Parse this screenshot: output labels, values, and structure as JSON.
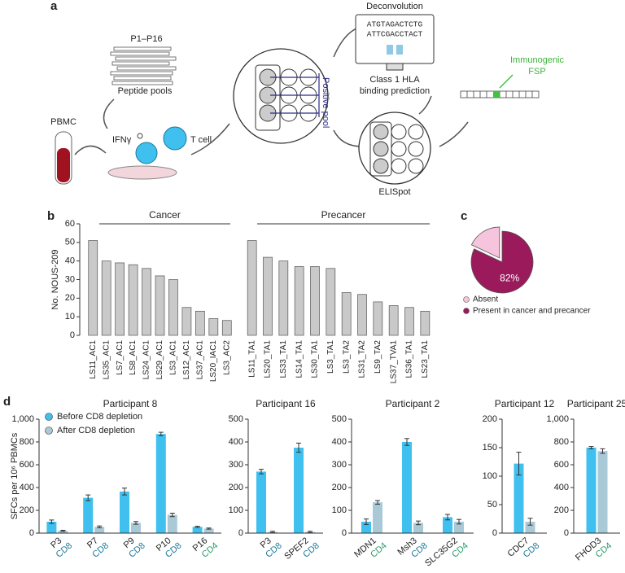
{
  "panel_labels": [
    "a",
    "b",
    "c",
    "d"
  ],
  "diagram": {
    "pools_title": "P1–P16",
    "pools_label": "Peptide pools",
    "pbmc": "PBMC",
    "ifng": "IFNγ",
    "tcell": "T cell",
    "positive_pool": "Positive pool",
    "deconvolution": "Deconvolution",
    "sequence": [
      "ATGTAGACTCTG",
      "ATTCGACCTACT"
    ],
    "prediction": [
      "Class 1 HLA",
      "binding prediction"
    ],
    "elispot": "ELISpot",
    "fsp": [
      "Immunogenic",
      "FSP"
    ]
  },
  "chart_data": [
    {
      "type": "bar",
      "y_label": "No. NOUS-209",
      "ylim": [
        0,
        60
      ],
      "yticks": [
        0,
        10,
        20,
        30,
        40,
        50,
        60
      ],
      "color": "#c9c9c9",
      "groups": [
        {
          "name": "Cancer",
          "categories": [
            "LS11_AC1",
            "LS35_AC1",
            "LS7_AC1",
            "LS8_AC1",
            "LS24_AC1",
            "LS29_AC1",
            "LS3_AC1",
            "LS12_AC1",
            "LS37_AC1",
            "LS20_IAC1",
            "LS3_AC2"
          ],
          "values": [
            51,
            40,
            39,
            38,
            36,
            32,
            30,
            15,
            13,
            9,
            8
          ]
        },
        {
          "name": "Precancer",
          "categories": [
            "LS11_TA1",
            "LS20_TA1",
            "LS33_TA1",
            "LS14_TA1",
            "LS30_TA1",
            "LS3_TA1",
            "LS3_TA2",
            "LS31_TA2",
            "LS9_TA2",
            "LS37_TVA1",
            "LS36_TA1",
            "LS23_TA1"
          ],
          "values": [
            51,
            42,
            40,
            37,
            37,
            36,
            23,
            22,
            18,
            16,
            15,
            13
          ]
        }
      ]
    },
    {
      "type": "pie",
      "categories": [
        "Absent",
        "Present in cancer and precancer"
      ],
      "values": [
        18,
        82
      ],
      "value_labels": [
        null,
        "82%"
      ],
      "colors": [
        "#f6c4dc",
        "#9b1a5c"
      ]
    },
    {
      "type": "bar",
      "title": "Participant 8",
      "y_label": "SFCs per 10⁶ PBMCs",
      "legend": true,
      "ylim": [
        0,
        1000
      ],
      "yticks": [
        0,
        200,
        400,
        600,
        800,
        {
          "value": 1000,
          "label": "1,000"
        }
      ],
      "categories": [
        "P3",
        "P7",
        "P9",
        "P10",
        "P16"
      ],
      "subsets": [
        "CD8",
        "CD8",
        "CD8",
        "CD8",
        "CD4"
      ],
      "subset_colors": {
        "CD8": "#1b7a99",
        "CD4": "#2a9d6a"
      },
      "series": [
        {
          "name": "Before CD8 depletion",
          "color": "#3fc0ef",
          "values": [
            100,
            310,
            365,
            870,
            55
          ],
          "errors": [
            15,
            25,
            30,
            15,
            5
          ]
        },
        {
          "name": "After CD8 depletion",
          "color": "#a9c9d7",
          "values": [
            20,
            55,
            90,
            160,
            40
          ],
          "errors": [
            5,
            8,
            12,
            15,
            5
          ]
        }
      ]
    },
    {
      "type": "bar",
      "title": "Participant 16",
      "ylim": [
        0,
        500
      ],
      "yticks": [
        0,
        100,
        200,
        300,
        400,
        500
      ],
      "categories": [
        "P3",
        "SPEF2"
      ],
      "subsets": [
        "CD8",
        "CD8"
      ],
      "subset_colors": {
        "CD8": "#1b7a99",
        "CD4": "#2a9d6a"
      },
      "series": [
        {
          "color": "#3fc0ef",
          "values": [
            270,
            375
          ],
          "errors": [
            10,
            20
          ]
        },
        {
          "color": "#a9c9d7",
          "values": [
            5,
            5
          ],
          "errors": [
            3,
            3
          ]
        }
      ]
    },
    {
      "type": "bar",
      "title": "Participant 2",
      "ylim": [
        0,
        500
      ],
      "yticks": [
        0,
        100,
        200,
        300,
        400,
        500
      ],
      "categories": [
        "MDN1",
        "Msh3",
        "SLC35G2"
      ],
      "subsets": [
        "CD4",
        "CD8",
        "CD4"
      ],
      "subset_colors": {
        "CD8": "#1b7a99",
        "CD4": "#2a9d6a"
      },
      "series": [
        {
          "color": "#3fc0ef",
          "values": [
            50,
            400,
            70
          ],
          "errors": [
            12,
            15,
            12
          ]
        },
        {
          "color": "#a9c9d7",
          "values": [
            135,
            45,
            50
          ],
          "errors": [
            8,
            8,
            10
          ]
        }
      ]
    },
    {
      "type": "bar",
      "title": "Participant 12",
      "ylim": [
        0,
        200
      ],
      "yticks": [
        0,
        50,
        100,
        150,
        200
      ],
      "categories": [
        "CDC7"
      ],
      "subsets": [
        "CD8"
      ],
      "subset_colors": {
        "CD8": "#1b7a99",
        "CD4": "#2a9d6a"
      },
      "series": [
        {
          "color": "#3fc0ef",
          "values": [
            122
          ],
          "errors": [
            20
          ]
        },
        {
          "color": "#a9c9d7",
          "values": [
            20
          ],
          "errors": [
            6
          ]
        }
      ]
    },
    {
      "type": "bar",
      "title": "Participant 25",
      "ylim": [
        0,
        1000
      ],
      "yticks": [
        0,
        200,
        400,
        600,
        800,
        {
          "value": 1000,
          "label": "1,000"
        }
      ],
      "categories": [
        "FHOD3"
      ],
      "subsets": [
        "CD4"
      ],
      "subset_colors": {
        "CD8": "#1b7a99",
        "CD4": "#2a9d6a"
      },
      "series": [
        {
          "color": "#3fc0ef",
          "values": [
            750
          ],
          "errors": [
            10
          ]
        },
        {
          "color": "#a9c9d7",
          "values": [
            720
          ],
          "errors": [
            20
          ]
        }
      ]
    }
  ]
}
